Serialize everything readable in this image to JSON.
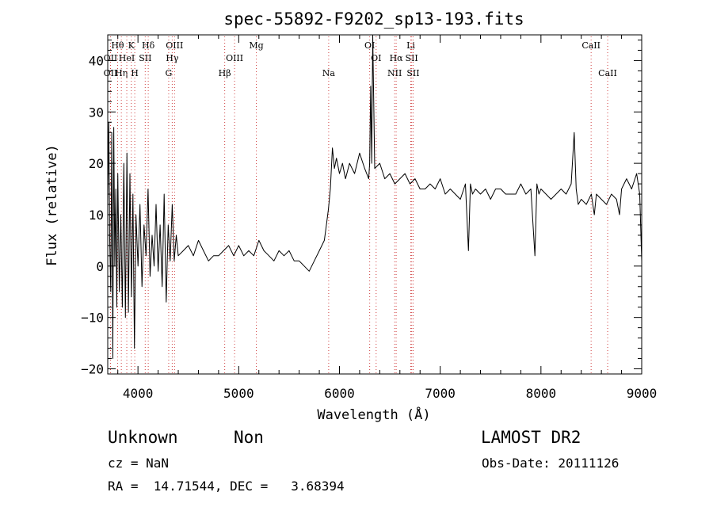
{
  "chart_data": {
    "type": "line",
    "title": "spec-55892-F9202_sp13-193.fits",
    "xlabel": "Wavelength (Å)",
    "ylabel": "Flux (relative)",
    "xlim": [
      3700,
      9000
    ],
    "ylim": [
      -21,
      45
    ],
    "x_ticks": [
      "4000",
      "5000",
      "6000",
      "7000",
      "8000",
      "9000"
    ],
    "y_ticks": [
      "−20",
      "−10",
      "0",
      "10",
      "20",
      "30",
      "40"
    ],
    "grid": false,
    "line_color": "#000000",
    "marker_color": "#d04040",
    "series": [
      {
        "x": [
          3700,
          3710,
          3720,
          3730,
          3740,
          3750,
          3760,
          3770,
          3780,
          3790,
          3800,
          3815,
          3830,
          3845,
          3860,
          3875,
          3890,
          3905,
          3920,
          3935,
          3950,
          3965,
          3980,
          4000,
          4020,
          4040,
          4060,
          4080,
          4100,
          4120,
          4140,
          4160,
          4180,
          4200,
          4220,
          4240,
          4260,
          4280,
          4300,
          4320,
          4340,
          4360,
          4380,
          4400,
          4450,
          4500,
          4550,
          4600,
          4650,
          4700,
          4750,
          4800,
          4850,
          4900,
          4950,
          5000,
          5050,
          5100,
          5150,
          5200,
          5250,
          5300,
          5350,
          5400,
          5450,
          5500,
          5550,
          5600,
          5650,
          5700,
          5750,
          5800,
          5850,
          5870,
          5890,
          5910,
          5930,
          5950,
          5970,
          6000,
          6030,
          6060,
          6100,
          6150,
          6200,
          6250,
          6290,
          6300,
          6310,
          6320,
          6330,
          6350,
          6400,
          6450,
          6500,
          6550,
          6600,
          6650,
          6700,
          6750,
          6800,
          6850,
          6900,
          6950,
          7000,
          7050,
          7100,
          7150,
          7200,
          7250,
          7280,
          7300,
          7320,
          7350,
          7400,
          7450,
          7500,
          7550,
          7600,
          7650,
          7700,
          7750,
          7800,
          7850,
          7900,
          7940,
          7960,
          7980,
          8000,
          8050,
          8100,
          8150,
          8200,
          8250,
          8300,
          8330,
          8350,
          8370,
          8400,
          8450,
          8500,
          8530,
          8550,
          8600,
          8650,
          8700,
          8750,
          8780,
          8800,
          8850,
          8900,
          8950,
          8980,
          9000
        ],
        "y": [
          12,
          28,
          5,
          -5,
          26,
          -18,
          27,
          0,
          15,
          -8,
          18,
          -5,
          10,
          -8,
          20,
          -10,
          22,
          -9,
          18,
          -6,
          14,
          -16,
          10,
          0,
          12,
          -4,
          8,
          2,
          15,
          -2,
          6,
          0,
          12,
          -1,
          8,
          -4,
          14,
          -7,
          8,
          1,
          12,
          1,
          6,
          2,
          3,
          4,
          2,
          5,
          3,
          1,
          2,
          2,
          3,
          4,
          2,
          4,
          2,
          3,
          2,
          5,
          3,
          2,
          1,
          3,
          2,
          3,
          1,
          1,
          0,
          -1,
          1,
          3,
          5,
          8,
          11,
          15,
          23,
          19,
          21,
          18,
          20,
          17,
          20,
          18,
          22,
          19,
          17,
          20,
          35,
          20,
          47,
          19,
          20,
          17,
          18,
          16,
          17,
          18,
          16,
          17,
          15,
          15,
          16,
          15,
          17,
          14,
          15,
          14,
          13,
          16,
          3,
          16,
          14,
          15,
          14,
          15,
          13,
          15,
          15,
          14,
          14,
          14,
          16,
          14,
          15,
          2,
          16,
          14,
          15,
          14,
          13,
          14,
          15,
          14,
          16,
          26,
          15,
          12,
          13,
          12,
          14,
          10,
          14,
          13,
          12,
          14,
          13,
          10,
          15,
          17,
          15,
          18,
          14,
          1
        ]
      }
    ],
    "lines": [
      {
        "label": "Hθ",
        "x": 3798,
        "row": 1
      },
      {
        "label": "OII",
        "x": 3727,
        "row": 2
      },
      {
        "label": "OII",
        "x": 3727,
        "row": 3
      },
      {
        "label": "Hη",
        "x": 3835,
        "row": 3
      },
      {
        "label": "HeI",
        "x": 3889,
        "row": 2
      },
      {
        "label": "K",
        "x": 3934,
        "row": 1
      },
      {
        "label": "H",
        "x": 3968,
        "row": 3
      },
      {
        "label": "SII",
        "x": 4072,
        "row": 2
      },
      {
        "label": "Hδ",
        "x": 4102,
        "row": 1
      },
      {
        "label": "OIII",
        "x": 4363,
        "row": 1
      },
      {
        "label": "Hγ",
        "x": 4340,
        "row": 2
      },
      {
        "label": "G",
        "x": 4305,
        "row": 3
      },
      {
        "label": "Hβ",
        "x": 4861,
        "row": 3
      },
      {
        "label": "OIII",
        "x": 4959,
        "row": 2
      },
      {
        "label": "Mg",
        "x": 5175,
        "row": 1
      },
      {
        "label": "Na",
        "x": 5893,
        "row": 3
      },
      {
        "label": "OI",
        "x": 6300,
        "row": 1
      },
      {
        "label": "OI",
        "x": 6364,
        "row": 2
      },
      {
        "label": "Hα",
        "x": 6563,
        "row": 2
      },
      {
        "label": "NII",
        "x": 6548,
        "row": 3
      },
      {
        "label": "Li",
        "x": 6708,
        "row": 1
      },
      {
        "label": "SII",
        "x": 6717,
        "row": 2
      },
      {
        "label": "SII",
        "x": 6731,
        "row": 3
      },
      {
        "label": "CaII",
        "x": 8498,
        "row": 1
      },
      {
        "label": "CaII",
        "x": 8662,
        "row": 3
      }
    ]
  },
  "info": {
    "class": "Unknown",
    "subclass": "Non",
    "survey": "LAMOST DR2",
    "cz": "cz = NaN",
    "obs_date": "Obs-Date: 20111126",
    "coords": "RA =  14.71544, DEC =   3.68394"
  }
}
